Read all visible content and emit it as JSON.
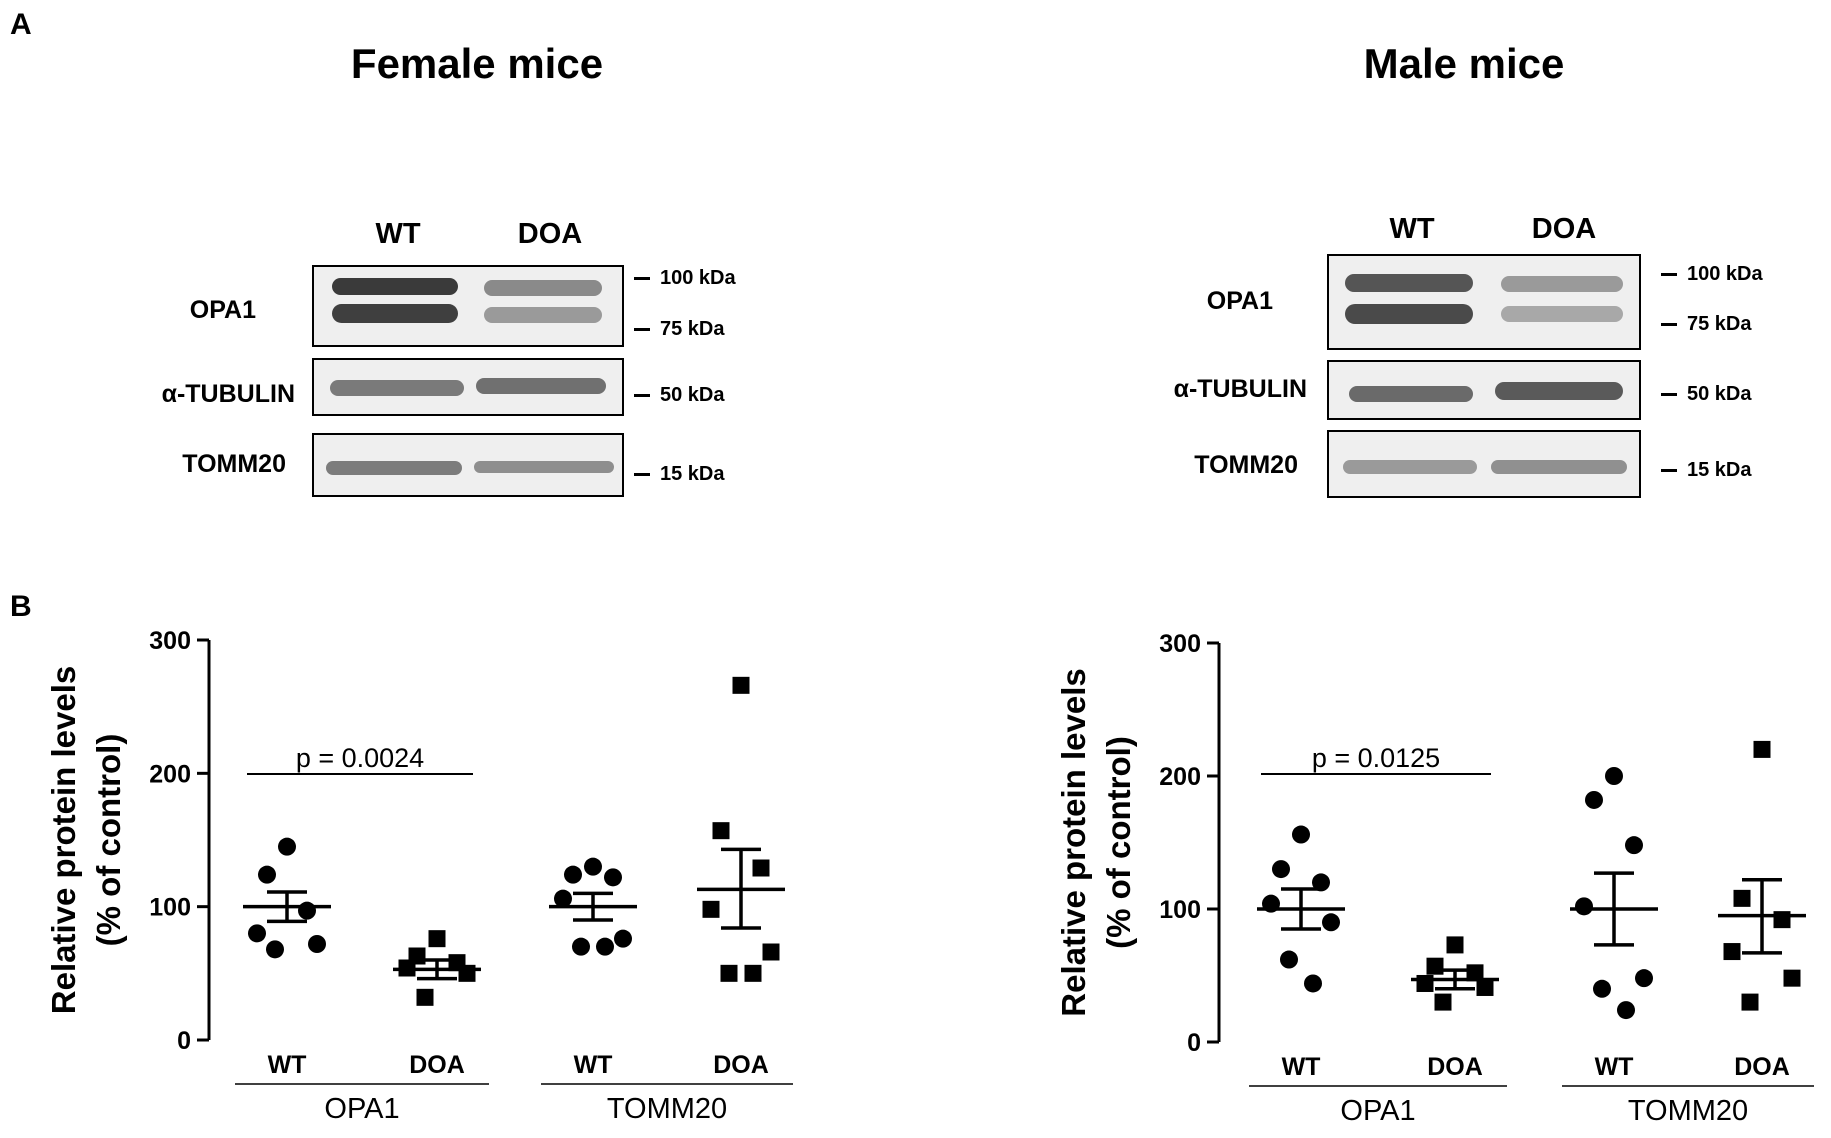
{
  "panel_a_label": "A",
  "panel_b_label": "B",
  "female": {
    "title": "Female mice",
    "lanes": [
      "WT",
      "DOA"
    ],
    "blots": [
      {
        "label": "OPA1",
        "markers": [
          "100 kDa",
          "75 kDa"
        ]
      },
      {
        "label": "α-TUBULIN",
        "markers": [
          "50 kDa"
        ]
      },
      {
        "label": "TOMM20",
        "markers": [
          "15 kDa"
        ]
      }
    ]
  },
  "male": {
    "title": "Male mice",
    "lanes": [
      "WT",
      "DOA"
    ],
    "blots": [
      {
        "label": "OPA1",
        "markers": [
          "100 kDa",
          "75 kDa"
        ]
      },
      {
        "label": "α-TUBULIN",
        "markers": [
          "50 kDa"
        ]
      },
      {
        "label": "TOMM20",
        "markers": [
          "15 kDa"
        ]
      }
    ]
  },
  "chart_data": [
    {
      "type": "scatter",
      "title": "Female mice",
      "ylabel_line1": "Relative protein levels",
      "ylabel_line2": "(% of control)",
      "ylim": [
        0,
        300
      ],
      "yticks": [
        0,
        100,
        200,
        300
      ],
      "groups": [
        {
          "label": "WT",
          "protein": "OPA1",
          "marker": "circle",
          "values": [
            145,
            124,
            97,
            80,
            72,
            68
          ],
          "mean": 100,
          "sem_low": 89,
          "sem_high": 111
        },
        {
          "label": "DOA",
          "protein": "OPA1",
          "marker": "square",
          "values": [
            76,
            63,
            58,
            54,
            50,
            32
          ],
          "mean": 53,
          "sem_low": 46,
          "sem_high": 60
        },
        {
          "label": "WT",
          "protein": "TOMM20",
          "marker": "circle",
          "values": [
            130,
            124,
            122,
            106,
            76,
            70,
            70
          ],
          "mean": 100,
          "sem_low": 90,
          "sem_high": 110
        },
        {
          "label": "DOA",
          "protein": "TOMM20",
          "marker": "square",
          "values": [
            266,
            157,
            129,
            98,
            66,
            50,
            50
          ],
          "mean": 113,
          "sem_low": 84,
          "sem_high": 143
        }
      ],
      "group_labels": [
        "OPA1",
        "TOMM20"
      ],
      "annotation": "p = 0.0024"
    },
    {
      "type": "scatter",
      "title": "Male mice",
      "ylabel_line1": "Relative protein levels",
      "ylabel_line2": "(% of control)",
      "ylim": [
        0,
        300
      ],
      "yticks": [
        0,
        100,
        200,
        300
      ],
      "groups": [
        {
          "label": "WT",
          "protein": "OPA1",
          "marker": "circle",
          "values": [
            156,
            130,
            120,
            104,
            90,
            62,
            44
          ],
          "mean": 100,
          "sem_low": 85,
          "sem_high": 115
        },
        {
          "label": "DOA",
          "protein": "OPA1",
          "marker": "square",
          "values": [
            73,
            57,
            52,
            44,
            41,
            30
          ],
          "mean": 47,
          "sem_low": 40,
          "sem_high": 54
        },
        {
          "label": "WT",
          "protein": "TOMM20",
          "marker": "circle",
          "values": [
            200,
            182,
            148,
            102,
            48,
            40,
            24
          ],
          "mean": 100,
          "sem_low": 73,
          "sem_high": 127
        },
        {
          "label": "DOA",
          "protein": "TOMM20",
          "marker": "square",
          "values": [
            220,
            108,
            92,
            68,
            48,
            30
          ],
          "mean": 95,
          "sem_low": 67,
          "sem_high": 122
        }
      ],
      "group_labels": [
        "OPA1",
        "TOMM20"
      ],
      "annotation": "p = 0.0125"
    }
  ],
  "colors": {
    "ink": "#000000",
    "band_dark": "#3a3a3a",
    "band_mid": "#5e5e5e",
    "band_light": "#8c8c8c",
    "blot_bg": "#efefef"
  }
}
